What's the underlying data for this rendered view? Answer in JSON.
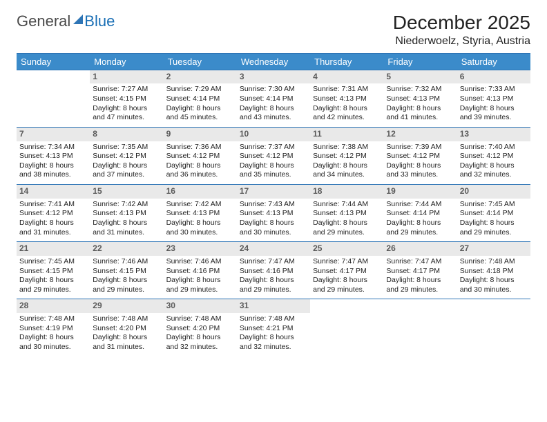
{
  "brand": {
    "part1": "General",
    "part2": "Blue"
  },
  "header": {
    "title": "December 2025",
    "location": "Niederwoelz, Styria, Austria"
  },
  "daysOfWeek": [
    "Sunday",
    "Monday",
    "Tuesday",
    "Wednesday",
    "Thursday",
    "Friday",
    "Saturday"
  ],
  "colors": {
    "headerBar": "#3b8bca",
    "ruleLine": "#2e75b6",
    "dayNumBg": "#e9e9e9",
    "background": "#ffffff"
  },
  "weeks": [
    [
      null,
      {
        "n": "1",
        "sunrise": "Sunrise: 7:27 AM",
        "sunset": "Sunset: 4:15 PM",
        "d1": "Daylight: 8 hours",
        "d2": "and 47 minutes."
      },
      {
        "n": "2",
        "sunrise": "Sunrise: 7:29 AM",
        "sunset": "Sunset: 4:14 PM",
        "d1": "Daylight: 8 hours",
        "d2": "and 45 minutes."
      },
      {
        "n": "3",
        "sunrise": "Sunrise: 7:30 AM",
        "sunset": "Sunset: 4:14 PM",
        "d1": "Daylight: 8 hours",
        "d2": "and 43 minutes."
      },
      {
        "n": "4",
        "sunrise": "Sunrise: 7:31 AM",
        "sunset": "Sunset: 4:13 PM",
        "d1": "Daylight: 8 hours",
        "d2": "and 42 minutes."
      },
      {
        "n": "5",
        "sunrise": "Sunrise: 7:32 AM",
        "sunset": "Sunset: 4:13 PM",
        "d1": "Daylight: 8 hours",
        "d2": "and 41 minutes."
      },
      {
        "n": "6",
        "sunrise": "Sunrise: 7:33 AM",
        "sunset": "Sunset: 4:13 PM",
        "d1": "Daylight: 8 hours",
        "d2": "and 39 minutes."
      }
    ],
    [
      {
        "n": "7",
        "sunrise": "Sunrise: 7:34 AM",
        "sunset": "Sunset: 4:13 PM",
        "d1": "Daylight: 8 hours",
        "d2": "and 38 minutes."
      },
      {
        "n": "8",
        "sunrise": "Sunrise: 7:35 AM",
        "sunset": "Sunset: 4:12 PM",
        "d1": "Daylight: 8 hours",
        "d2": "and 37 minutes."
      },
      {
        "n": "9",
        "sunrise": "Sunrise: 7:36 AM",
        "sunset": "Sunset: 4:12 PM",
        "d1": "Daylight: 8 hours",
        "d2": "and 36 minutes."
      },
      {
        "n": "10",
        "sunrise": "Sunrise: 7:37 AM",
        "sunset": "Sunset: 4:12 PM",
        "d1": "Daylight: 8 hours",
        "d2": "and 35 minutes."
      },
      {
        "n": "11",
        "sunrise": "Sunrise: 7:38 AM",
        "sunset": "Sunset: 4:12 PM",
        "d1": "Daylight: 8 hours",
        "d2": "and 34 minutes."
      },
      {
        "n": "12",
        "sunrise": "Sunrise: 7:39 AM",
        "sunset": "Sunset: 4:12 PM",
        "d1": "Daylight: 8 hours",
        "d2": "and 33 minutes."
      },
      {
        "n": "13",
        "sunrise": "Sunrise: 7:40 AM",
        "sunset": "Sunset: 4:12 PM",
        "d1": "Daylight: 8 hours",
        "d2": "and 32 minutes."
      }
    ],
    [
      {
        "n": "14",
        "sunrise": "Sunrise: 7:41 AM",
        "sunset": "Sunset: 4:12 PM",
        "d1": "Daylight: 8 hours",
        "d2": "and 31 minutes."
      },
      {
        "n": "15",
        "sunrise": "Sunrise: 7:42 AM",
        "sunset": "Sunset: 4:13 PM",
        "d1": "Daylight: 8 hours",
        "d2": "and 31 minutes."
      },
      {
        "n": "16",
        "sunrise": "Sunrise: 7:42 AM",
        "sunset": "Sunset: 4:13 PM",
        "d1": "Daylight: 8 hours",
        "d2": "and 30 minutes."
      },
      {
        "n": "17",
        "sunrise": "Sunrise: 7:43 AM",
        "sunset": "Sunset: 4:13 PM",
        "d1": "Daylight: 8 hours",
        "d2": "and 30 minutes."
      },
      {
        "n": "18",
        "sunrise": "Sunrise: 7:44 AM",
        "sunset": "Sunset: 4:13 PM",
        "d1": "Daylight: 8 hours",
        "d2": "and 29 minutes."
      },
      {
        "n": "19",
        "sunrise": "Sunrise: 7:44 AM",
        "sunset": "Sunset: 4:14 PM",
        "d1": "Daylight: 8 hours",
        "d2": "and 29 minutes."
      },
      {
        "n": "20",
        "sunrise": "Sunrise: 7:45 AM",
        "sunset": "Sunset: 4:14 PM",
        "d1": "Daylight: 8 hours",
        "d2": "and 29 minutes."
      }
    ],
    [
      {
        "n": "21",
        "sunrise": "Sunrise: 7:45 AM",
        "sunset": "Sunset: 4:15 PM",
        "d1": "Daylight: 8 hours",
        "d2": "and 29 minutes."
      },
      {
        "n": "22",
        "sunrise": "Sunrise: 7:46 AM",
        "sunset": "Sunset: 4:15 PM",
        "d1": "Daylight: 8 hours",
        "d2": "and 29 minutes."
      },
      {
        "n": "23",
        "sunrise": "Sunrise: 7:46 AM",
        "sunset": "Sunset: 4:16 PM",
        "d1": "Daylight: 8 hours",
        "d2": "and 29 minutes."
      },
      {
        "n": "24",
        "sunrise": "Sunrise: 7:47 AM",
        "sunset": "Sunset: 4:16 PM",
        "d1": "Daylight: 8 hours",
        "d2": "and 29 minutes."
      },
      {
        "n": "25",
        "sunrise": "Sunrise: 7:47 AM",
        "sunset": "Sunset: 4:17 PM",
        "d1": "Daylight: 8 hours",
        "d2": "and 29 minutes."
      },
      {
        "n": "26",
        "sunrise": "Sunrise: 7:47 AM",
        "sunset": "Sunset: 4:17 PM",
        "d1": "Daylight: 8 hours",
        "d2": "and 29 minutes."
      },
      {
        "n": "27",
        "sunrise": "Sunrise: 7:48 AM",
        "sunset": "Sunset: 4:18 PM",
        "d1": "Daylight: 8 hours",
        "d2": "and 30 minutes."
      }
    ],
    [
      {
        "n": "28",
        "sunrise": "Sunrise: 7:48 AM",
        "sunset": "Sunset: 4:19 PM",
        "d1": "Daylight: 8 hours",
        "d2": "and 30 minutes."
      },
      {
        "n": "29",
        "sunrise": "Sunrise: 7:48 AM",
        "sunset": "Sunset: 4:20 PM",
        "d1": "Daylight: 8 hours",
        "d2": "and 31 minutes."
      },
      {
        "n": "30",
        "sunrise": "Sunrise: 7:48 AM",
        "sunset": "Sunset: 4:20 PM",
        "d1": "Daylight: 8 hours",
        "d2": "and 32 minutes."
      },
      {
        "n": "31",
        "sunrise": "Sunrise: 7:48 AM",
        "sunset": "Sunset: 4:21 PM",
        "d1": "Daylight: 8 hours",
        "d2": "and 32 minutes."
      },
      null,
      null,
      null
    ]
  ]
}
